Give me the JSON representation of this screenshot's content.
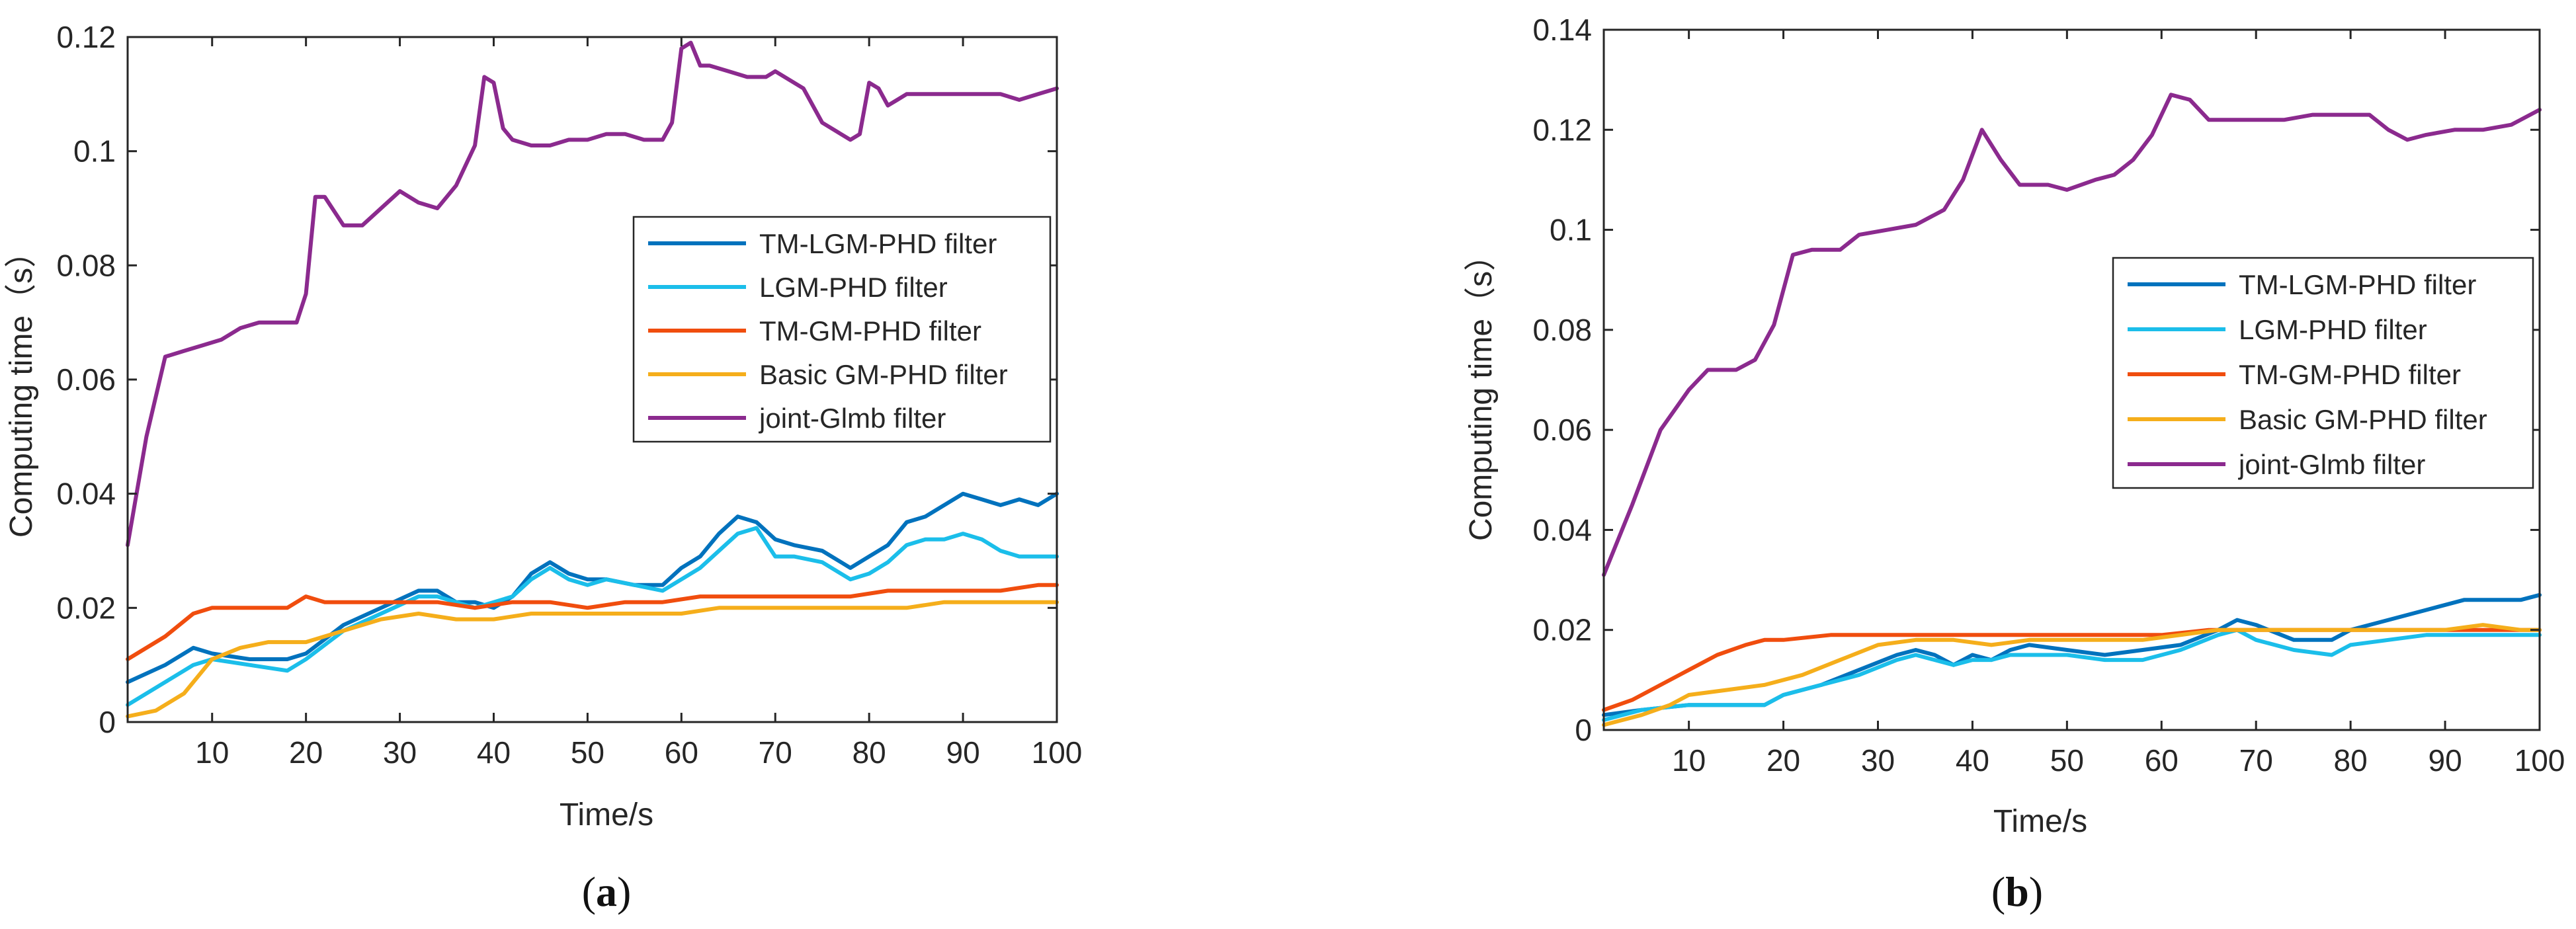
{
  "chart_data": [
    {
      "type": "line",
      "panel_label": "a",
      "xlabel": "Time/s",
      "ylabel": "Computing time（s）",
      "xlim": [
        1,
        100
      ],
      "ylim": [
        0,
        0.12
      ],
      "xticks": [
        10,
        20,
        30,
        40,
        50,
        60,
        70,
        80,
        90,
        100
      ],
      "yticks": [
        0,
        0.02,
        0.04,
        0.06,
        0.08,
        0.1,
        0.12
      ],
      "ytick_labels": [
        "0",
        "0.02",
        "0.04",
        "0.06",
        "0.08",
        "0.1",
        "0.12"
      ],
      "grid": false,
      "legend_position": "right",
      "series": [
        {
          "name": "TM-LGM-PHD filter",
          "color": "#0072BD",
          "x": [
            1,
            5,
            8,
            10,
            14,
            18,
            20,
            24,
            28,
            32,
            34,
            36,
            38,
            40,
            42,
            44,
            46,
            48,
            50,
            52,
            55,
            58,
            60,
            62,
            64,
            66,
            68,
            70,
            72,
            75,
            78,
            80,
            82,
            84,
            86,
            88,
            90,
            92,
            94,
            96,
            98,
            100
          ],
          "values": [
            0.007,
            0.01,
            0.013,
            0.012,
            0.011,
            0.011,
            0.012,
            0.017,
            0.02,
            0.023,
            0.023,
            0.021,
            0.021,
            0.02,
            0.022,
            0.026,
            0.028,
            0.026,
            0.025,
            0.025,
            0.024,
            0.024,
            0.027,
            0.029,
            0.033,
            0.036,
            0.035,
            0.032,
            0.031,
            0.03,
            0.027,
            0.029,
            0.031,
            0.035,
            0.036,
            0.038,
            0.04,
            0.039,
            0.038,
            0.039,
            0.038,
            0.04
          ]
        },
        {
          "name": "LGM-PHD filter",
          "color": "#1BBEEA",
          "x": [
            1,
            5,
            8,
            10,
            14,
            18,
            20,
            24,
            28,
            32,
            34,
            36,
            38,
            40,
            42,
            44,
            46,
            48,
            50,
            52,
            55,
            58,
            60,
            62,
            64,
            66,
            68,
            70,
            72,
            75,
            78,
            80,
            82,
            84,
            86,
            88,
            90,
            92,
            94,
            96,
            98,
            100
          ],
          "values": [
            0.003,
            0.007,
            0.01,
            0.011,
            0.01,
            0.009,
            0.011,
            0.016,
            0.019,
            0.022,
            0.022,
            0.021,
            0.02,
            0.021,
            0.022,
            0.025,
            0.027,
            0.025,
            0.024,
            0.025,
            0.024,
            0.023,
            0.025,
            0.027,
            0.03,
            0.033,
            0.034,
            0.029,
            0.029,
            0.028,
            0.025,
            0.026,
            0.028,
            0.031,
            0.032,
            0.032,
            0.033,
            0.032,
            0.03,
            0.029,
            0.029,
            0.029
          ]
        },
        {
          "name": "TM-GM-PHD filter",
          "color": "#F04D0E",
          "x": [
            1,
            5,
            8,
            10,
            14,
            18,
            20,
            22,
            26,
            30,
            34,
            38,
            42,
            46,
            50,
            54,
            58,
            62,
            66,
            70,
            74,
            78,
            82,
            86,
            90,
            94,
            98,
            100
          ],
          "values": [
            0.011,
            0.015,
            0.019,
            0.02,
            0.02,
            0.02,
            0.022,
            0.021,
            0.021,
            0.021,
            0.021,
            0.02,
            0.021,
            0.021,
            0.02,
            0.021,
            0.021,
            0.022,
            0.022,
            0.022,
            0.022,
            0.022,
            0.023,
            0.023,
            0.023,
            0.023,
            0.024,
            0.024
          ]
        },
        {
          "name": "Basic GM-PHD filter",
          "color": "#F5AE1B",
          "x": [
            1,
            4,
            7,
            10,
            13,
            16,
            20,
            24,
            28,
            32,
            36,
            40,
            44,
            48,
            52,
            56,
            60,
            64,
            68,
            72,
            76,
            80,
            84,
            88,
            92,
            96,
            100
          ],
          "values": [
            0.001,
            0.002,
            0.005,
            0.011,
            0.013,
            0.014,
            0.014,
            0.016,
            0.018,
            0.019,
            0.018,
            0.018,
            0.019,
            0.019,
            0.019,
            0.019,
            0.019,
            0.02,
            0.02,
            0.02,
            0.02,
            0.02,
            0.02,
            0.021,
            0.021,
            0.021,
            0.021
          ]
        },
        {
          "name": "joint-Glmb filter",
          "color": "#8B2A8E",
          "x": [
            1,
            3,
            5,
            7,
            9,
            11,
            13,
            15,
            17,
            19,
            20,
            21,
            22,
            24,
            26,
            28,
            30,
            32,
            34,
            36,
            38,
            39,
            40,
            41,
            42,
            44,
            46,
            48,
            50,
            52,
            54,
            56,
            58,
            59,
            60,
            61,
            62,
            63,
            65,
            67,
            69,
            70,
            71,
            73,
            75,
            77,
            78,
            79,
            80,
            81,
            82,
            83,
            84,
            86,
            88,
            90,
            92,
            94,
            96,
            98,
            100
          ],
          "values": [
            0.031,
            0.05,
            0.064,
            0.065,
            0.066,
            0.067,
            0.069,
            0.07,
            0.07,
            0.07,
            0.075,
            0.092,
            0.092,
            0.087,
            0.087,
            0.09,
            0.093,
            0.091,
            0.09,
            0.094,
            0.101,
            0.113,
            0.112,
            0.104,
            0.102,
            0.101,
            0.101,
            0.102,
            0.102,
            0.103,
            0.103,
            0.102,
            0.102,
            0.105,
            0.118,
            0.119,
            0.115,
            0.115,
            0.114,
            0.113,
            0.113,
            0.114,
            0.113,
            0.111,
            0.105,
            0.103,
            0.102,
            0.103,
            0.112,
            0.111,
            0.108,
            0.109,
            0.11,
            0.11,
            0.11,
            0.11,
            0.11,
            0.11,
            0.109,
            0.11,
            0.111
          ]
        }
      ]
    },
    {
      "type": "line",
      "panel_label": "b",
      "xlabel": "Time/s",
      "ylabel": "Computing time（s）",
      "xlim": [
        1,
        100
      ],
      "ylim": [
        0,
        0.14
      ],
      "xticks": [
        10,
        20,
        30,
        40,
        50,
        60,
        70,
        80,
        90,
        100
      ],
      "yticks": [
        0,
        0.02,
        0.04,
        0.06,
        0.08,
        0.1,
        0.12,
        0.14
      ],
      "ytick_labels": [
        "0",
        "0.02",
        "0.04",
        "0.06",
        "0.08",
        "0.1",
        "0.12",
        "0.14"
      ],
      "grid": false,
      "legend_position": "right",
      "series": [
        {
          "name": "TM-LGM-PHD filter",
          "color": "#0072BD",
          "x": [
            1,
            5,
            10,
            14,
            18,
            20,
            24,
            28,
            32,
            34,
            36,
            38,
            40,
            42,
            44,
            46,
            50,
            54,
            58,
            62,
            66,
            68,
            70,
            74,
            76,
            78,
            80,
            84,
            88,
            92,
            96,
            98,
            100
          ],
          "values": [
            0.003,
            0.004,
            0.005,
            0.005,
            0.005,
            0.007,
            0.009,
            0.012,
            0.015,
            0.016,
            0.015,
            0.013,
            0.015,
            0.014,
            0.016,
            0.017,
            0.016,
            0.015,
            0.016,
            0.017,
            0.02,
            0.022,
            0.021,
            0.018,
            0.018,
            0.018,
            0.02,
            0.022,
            0.024,
            0.026,
            0.026,
            0.026,
            0.027
          ]
        },
        {
          "name": "LGM-PHD filter",
          "color": "#1BBEEA",
          "x": [
            1,
            5,
            10,
            14,
            18,
            20,
            24,
            28,
            32,
            34,
            36,
            38,
            40,
            42,
            44,
            46,
            50,
            54,
            58,
            62,
            66,
            68,
            70,
            74,
            78,
            80,
            84,
            88,
            92,
            96,
            100
          ],
          "values": [
            0.002,
            0.004,
            0.005,
            0.005,
            0.005,
            0.007,
            0.009,
            0.011,
            0.014,
            0.015,
            0.014,
            0.013,
            0.014,
            0.014,
            0.015,
            0.015,
            0.015,
            0.014,
            0.014,
            0.016,
            0.019,
            0.02,
            0.018,
            0.016,
            0.015,
            0.017,
            0.018,
            0.019,
            0.019,
            0.019,
            0.019
          ]
        },
        {
          "name": "TM-GM-PHD filter",
          "color": "#F04D0E",
          "x": [
            1,
            4,
            7,
            10,
            13,
            16,
            18,
            20,
            25,
            30,
            35,
            40,
            45,
            50,
            55,
            60,
            65,
            70,
            75,
            80,
            85,
            90,
            95,
            100
          ],
          "values": [
            0.004,
            0.006,
            0.009,
            0.012,
            0.015,
            0.017,
            0.018,
            0.018,
            0.019,
            0.019,
            0.019,
            0.019,
            0.019,
            0.019,
            0.019,
            0.019,
            0.02,
            0.02,
            0.02,
            0.02,
            0.02,
            0.02,
            0.02,
            0.02
          ]
        },
        {
          "name": "Basic GM-PHD filter",
          "color": "#F5AE1B",
          "x": [
            1,
            5,
            8,
            10,
            14,
            18,
            22,
            26,
            30,
            34,
            38,
            42,
            46,
            50,
            54,
            58,
            62,
            66,
            70,
            74,
            78,
            82,
            86,
            90,
            94,
            98,
            100
          ],
          "values": [
            0.001,
            0.003,
            0.005,
            0.007,
            0.008,
            0.009,
            0.011,
            0.014,
            0.017,
            0.018,
            0.018,
            0.017,
            0.018,
            0.018,
            0.018,
            0.018,
            0.019,
            0.02,
            0.02,
            0.02,
            0.02,
            0.02,
            0.02,
            0.02,
            0.021,
            0.02,
            0.02
          ]
        },
        {
          "name": "joint-Glmb filter",
          "color": "#8B2A8E",
          "x": [
            1,
            4,
            7,
            10,
            12,
            15,
            17,
            19,
            21,
            23,
            26,
            28,
            31,
            34,
            37,
            39,
            41,
            43,
            45,
            48,
            50,
            53,
            55,
            57,
            59,
            61,
            63,
            65,
            67,
            70,
            73,
            76,
            79,
            82,
            84,
            86,
            88,
            91,
            94,
            97,
            100
          ],
          "values": [
            0.031,
            0.045,
            0.06,
            0.068,
            0.072,
            0.072,
            0.074,
            0.081,
            0.095,
            0.096,
            0.096,
            0.099,
            0.1,
            0.101,
            0.104,
            0.11,
            0.12,
            0.114,
            0.109,
            0.109,
            0.108,
            0.11,
            0.111,
            0.114,
            0.119,
            0.127,
            0.126,
            0.122,
            0.122,
            0.122,
            0.122,
            0.123,
            0.123,
            0.123,
            0.12,
            0.118,
            0.119,
            0.12,
            0.12,
            0.121,
            0.124
          ]
        }
      ]
    }
  ]
}
